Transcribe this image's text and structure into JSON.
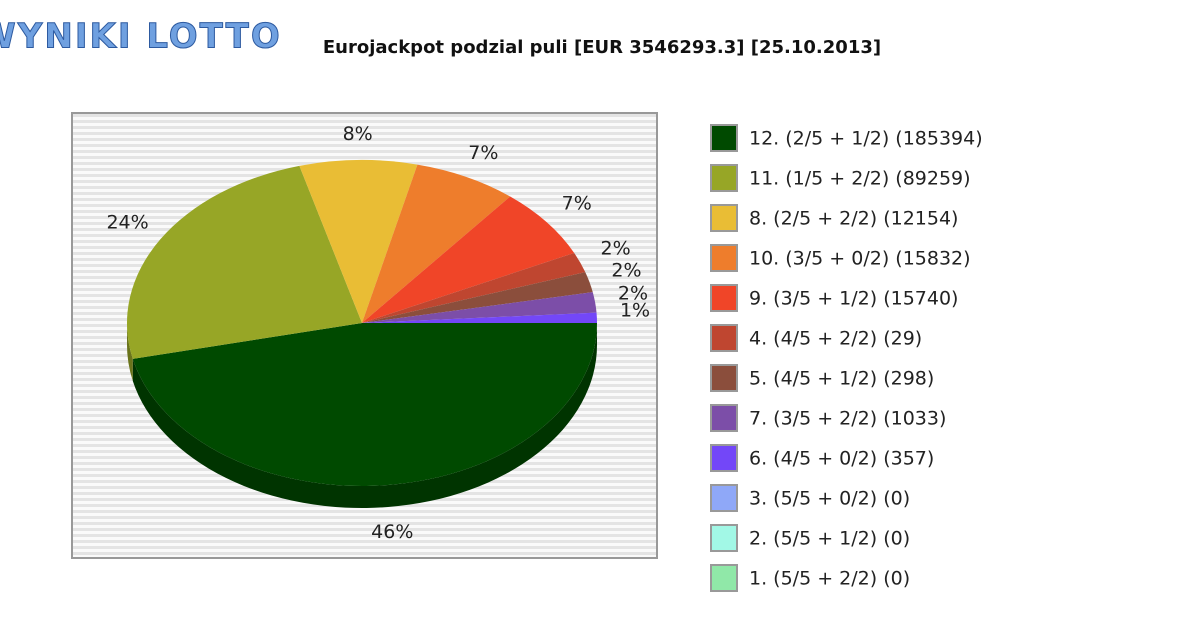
{
  "logo": "WYNIKI LOTTO",
  "chart_data": {
    "type": "pie",
    "title": "Eurojackpot podzial puli [EUR 3546293.3] [25.10.2013]",
    "categories": [
      "12. (2/5 + 1/2) (185394)",
      "11. (1/5 + 2/2) (89259)",
      "8. (2/5 + 2/2) (12154)",
      "10. (3/5 + 0/2) (15832)",
      "9. (3/5 + 1/2) (15740)",
      "4. (4/5 + 2/2) (29)",
      "5. (4/5 + 1/2) (298)",
      "7. (3/5 + 2/2) (1033)",
      "6. (4/5 + 0/2) (357)",
      "3. (5/5 + 0/2) (0)",
      "2. (5/5 + 1/2) (0)",
      "1. (5/5 + 2/2) (0)"
    ],
    "values": [
      46,
      24,
      8,
      7,
      7,
      2,
      2,
      2,
      1,
      0,
      0,
      0
    ],
    "value_labels": [
      "46%",
      "24%",
      "8%",
      "7%",
      "7%",
      "2%",
      "2%",
      "2%",
      "1%",
      null,
      null,
      null
    ],
    "colors": [
      "#004a00",
      "#97a626",
      "#e9bd35",
      "#ee7d2c",
      "#f04528",
      "#bf4630",
      "#8b4e3c",
      "#7c4ea8",
      "#7347f8",
      "#8fa8f8",
      "#a2f8e6",
      "#90e8a8"
    ],
    "legend": "right"
  }
}
